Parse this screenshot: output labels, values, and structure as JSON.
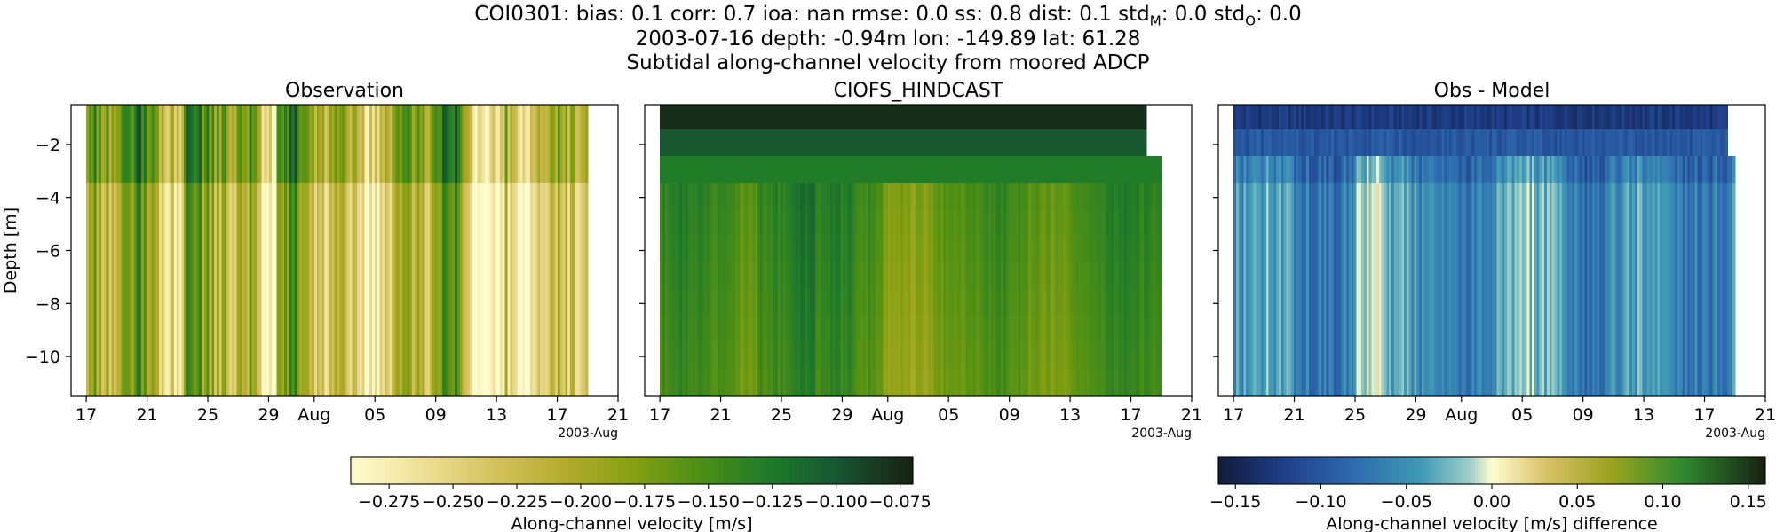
{
  "figure": {
    "title_lines": [
      "COI0301: bias: 0.1  corr: 0.7  ioa: nan  rmse: 0.0  ss: 0.8  dist: 0.1  std_M: 0.0  std_O: 0.0",
      "2003-07-16 depth: -0.94m lon: -149.89 lat: 61.28",
      "Subtidal along-channel velocity from moored ADCP"
    ],
    "title_line1_parts": {
      "prefix": "COI0301: bias: 0.1  corr: 0.7  ioa: nan  rmse: 0.0  ss: 0.8  dist: 0.1  std",
      "stdM_sub": "M",
      "mid": ": 0.0  std",
      "stdO_sub": "O",
      "suffix": ": 0.0"
    }
  },
  "chart_data": [
    {
      "type": "heatmap",
      "title": "Observation",
      "ylabel": "Depth [m]",
      "xlabel": "",
      "x_tick_labels": [
        "17",
        "21",
        "25",
        "29",
        "Aug",
        "05",
        "09",
        "13",
        "17",
        "21"
      ],
      "x_offset_label": "2003-Aug",
      "x_range": [
        "2003-07-16",
        "2003-08-21"
      ],
      "x_data_range": [
        "2003-07-17",
        "2003-08-19"
      ],
      "y_tick_labels": [
        "-2",
        "-4",
        "-6",
        "-8",
        "-10"
      ],
      "ylim": [
        -11.5,
        -0.5
      ],
      "depths": [
        -0.94,
        -1.94,
        -2.94,
        -3.94,
        -4.94,
        -5.94,
        -6.94,
        -7.94,
        -8.94,
        -9.94,
        -10.94
      ],
      "value_range": [
        -0.29,
        -0.07
      ],
      "colormap": "speed",
      "colorbar_label": "Along-channel velocity [m/s]",
      "colorbar_ticks": [
        "-0.275",
        "-0.250",
        "-0.225",
        "-0.200",
        "-0.175",
        "-0.150",
        "-0.125",
        "-0.100",
        "-0.075"
      ]
    },
    {
      "type": "heatmap",
      "title": "CIOFS_HINDCAST",
      "ylabel": "",
      "xlabel": "",
      "x_tick_labels": [
        "17",
        "21",
        "25",
        "29",
        "Aug",
        "05",
        "09",
        "13",
        "17",
        "21"
      ],
      "x_offset_label": "2003-Aug",
      "x_range": [
        "2003-07-16",
        "2003-08-21"
      ],
      "x_data_range": [
        "2003-07-17",
        "2003-08-19"
      ],
      "ylim": [
        -11.5,
        -0.5
      ],
      "value_range": [
        -0.29,
        -0.07
      ],
      "colormap": "speed"
    },
    {
      "type": "heatmap",
      "title": "Obs - Model",
      "ylabel": "",
      "xlabel": "",
      "x_tick_labels": [
        "17",
        "21",
        "25",
        "29",
        "Aug",
        "05",
        "09",
        "13",
        "17",
        "21"
      ],
      "x_offset_label": "2003-Aug",
      "x_range": [
        "2003-07-16",
        "2003-08-21"
      ],
      "x_data_range": [
        "2003-07-17",
        "2003-08-19"
      ],
      "ylim": [
        -11.5,
        -0.5
      ],
      "value_range": [
        -0.16,
        0.16
      ],
      "colormap": "delta",
      "colorbar_label": "Along-channel velocity [m/s] difference",
      "colorbar_ticks": [
        "-0.15",
        "-0.10",
        "-0.05",
        "0.00",
        "0.05",
        "0.10",
        "0.15"
      ]
    }
  ]
}
